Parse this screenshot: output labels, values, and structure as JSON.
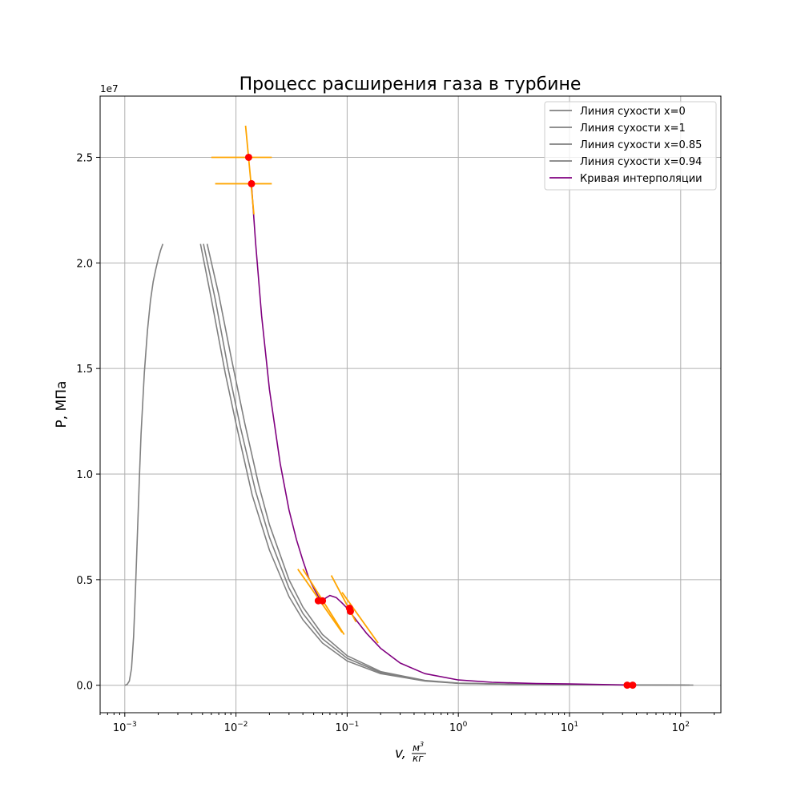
{
  "chart_data": {
    "type": "line",
    "title": "Процесс расширения газа в турбине",
    "xlabel": "v, м³/кг",
    "xlabel_parts": {
      "var": "v,",
      "num": "м",
      "exp": "3",
      "den": "кг"
    },
    "ylabel": "P, МПа",
    "y_offset_label": "1e7",
    "x_scale": "log",
    "xlim": [
      0.0006,
      230
    ],
    "ylim": [
      -1300000,
      27900000
    ],
    "grid": true,
    "legend_position": "upper right",
    "x_ticks": [
      {
        "value": 0.001,
        "base": "10",
        "exp": "−3"
      },
      {
        "value": 0.01,
        "base": "10",
        "exp": "−2"
      },
      {
        "value": 0.1,
        "base": "10",
        "exp": "−1"
      },
      {
        "value": 1,
        "base": "10",
        "exp": "0"
      },
      {
        "value": 10,
        "base": "10",
        "exp": "1"
      },
      {
        "value": 100,
        "base": "10",
        "exp": "2"
      }
    ],
    "y_ticks": [
      {
        "value": 0,
        "label": "0.0"
      },
      {
        "value": 5000000,
        "label": "0.5"
      },
      {
        "value": 10000000,
        "label": "1.0"
      },
      {
        "value": 15000000,
        "label": "1.5"
      },
      {
        "value": 20000000,
        "label": "2.0"
      },
      {
        "value": 25000000,
        "label": "2.5"
      }
    ],
    "series": [
      {
        "name": "Линия сухости x=0",
        "color": "#808080",
        "points": [
          [
            0.001,
            0
          ],
          [
            0.00105,
            40000
          ],
          [
            0.0011,
            200000
          ],
          [
            0.00115,
            800000
          ],
          [
            0.0012,
            2300000
          ],
          [
            0.00125,
            4600000
          ],
          [
            0.0013,
            7200000
          ],
          [
            0.00135,
            9700000
          ],
          [
            0.0014,
            11900000
          ],
          [
            0.0015,
            14800000
          ],
          [
            0.0016,
            16800000
          ],
          [
            0.0017,
            18200000
          ],
          [
            0.0018,
            19100000
          ],
          [
            0.0019,
            19700000
          ],
          [
            0.002,
            20200000
          ],
          [
            0.0021,
            20600000
          ],
          [
            0.0022,
            20900000
          ]
        ]
      },
      {
        "name": "Линия сухости x=1",
        "color": "#808080",
        "points": [
          [
            0.0055,
            20900000
          ],
          [
            0.007,
            18500000
          ],
          [
            0.009,
            15600000
          ],
          [
            0.012,
            12400000
          ],
          [
            0.016,
            9500000
          ],
          [
            0.02,
            7600000
          ],
          [
            0.03,
            5000000
          ],
          [
            0.04,
            3700000
          ],
          [
            0.06,
            2400000
          ],
          [
            0.1,
            1400000
          ],
          [
            0.2,
            650000
          ],
          [
            0.5,
            230000
          ],
          [
            1,
            100000
          ],
          [
            3,
            50000
          ],
          [
            10,
            30000
          ],
          [
            40,
            15000
          ],
          [
            130,
            10000
          ]
        ]
      },
      {
        "name": "Линия сухости x=0.85",
        "color": "#808080",
        "points": [
          [
            0.0048,
            20900000
          ],
          [
            0.006,
            18300000
          ],
          [
            0.008,
            14800000
          ],
          [
            0.01,
            12400000
          ],
          [
            0.014,
            9000000
          ],
          [
            0.02,
            6400000
          ],
          [
            0.03,
            4200000
          ],
          [
            0.04,
            3100000
          ],
          [
            0.06,
            2000000
          ],
          [
            0.1,
            1150000
          ],
          [
            0.2,
            550000
          ],
          [
            0.5,
            200000
          ],
          [
            1,
            90000
          ],
          [
            3,
            45000
          ],
          [
            10,
            28000
          ],
          [
            40,
            14000
          ],
          [
            110,
            9000
          ]
        ]
      },
      {
        "name": "Линия сухости x=0.94",
        "color": "#808080",
        "points": [
          [
            0.0051,
            20900000
          ],
          [
            0.0065,
            18300000
          ],
          [
            0.0085,
            15000000
          ],
          [
            0.011,
            12200000
          ],
          [
            0.015,
            9200000
          ],
          [
            0.02,
            7000000
          ],
          [
            0.03,
            4600000
          ],
          [
            0.04,
            3400000
          ],
          [
            0.06,
            2200000
          ],
          [
            0.1,
            1280000
          ],
          [
            0.2,
            600000
          ],
          [
            0.5,
            215000
          ],
          [
            1,
            95000
          ],
          [
            3,
            47000
          ],
          [
            10,
            29000
          ],
          [
            40,
            14500
          ],
          [
            120,
            9500
          ]
        ]
      },
      {
        "name": "Кривая интерполяции",
        "color": "#800080",
        "points": [
          [
            0.0138,
            23700000
          ],
          [
            0.015,
            21000000
          ],
          [
            0.017,
            17500000
          ],
          [
            0.02,
            14000000
          ],
          [
            0.025,
            10500000
          ],
          [
            0.03,
            8300000
          ],
          [
            0.035,
            6900000
          ],
          [
            0.04,
            5900000
          ],
          [
            0.045,
            5100000
          ],
          [
            0.05,
            4600000
          ],
          [
            0.055,
            4200000
          ],
          [
            0.06,
            4000000
          ],
          [
            0.065,
            4150000
          ],
          [
            0.07,
            4250000
          ],
          [
            0.08,
            4150000
          ],
          [
            0.09,
            3900000
          ],
          [
            0.1,
            3650000
          ],
          [
            0.12,
            3100000
          ],
          [
            0.15,
            2450000
          ],
          [
            0.2,
            1750000
          ],
          [
            0.3,
            1050000
          ],
          [
            0.5,
            550000
          ],
          [
            1,
            250000
          ],
          [
            2,
            140000
          ],
          [
            5,
            80000
          ],
          [
            10,
            60000
          ],
          [
            20,
            35000
          ],
          [
            35,
            10000
          ]
        ]
      }
    ],
    "markers": [
      {
        "x": 0.013,
        "y": 25000000,
        "color": "#ff0000"
      },
      {
        "x": 0.0138,
        "y": 23750000,
        "color": "#ff0000"
      },
      {
        "x": 0.055,
        "y": 4000000,
        "color": "#ff0000"
      },
      {
        "x": 0.06,
        "y": 4000000,
        "color": "#ff0000"
      },
      {
        "x": 0.105,
        "y": 3650000,
        "color": "#ff0000"
      },
      {
        "x": 0.107,
        "y": 3500000,
        "color": "#ff0000"
      },
      {
        "x": 33,
        "y": 5000,
        "color": "#ff0000"
      },
      {
        "x": 37,
        "y": 5000,
        "color": "#ff0000"
      }
    ],
    "tangent_lines": {
      "color": "#ffa500",
      "segments": [
        [
          [
            0.006,
            25000000
          ],
          [
            0.021,
            25000000
          ]
        ],
        [
          [
            0.0065,
            23750000
          ],
          [
            0.021,
            23750000
          ]
        ],
        [
          [
            0.0122,
            26500000
          ],
          [
            0.0145,
            22300000
          ]
        ],
        [
          [
            0.036,
            5500000
          ],
          [
            0.09,
            2500000
          ]
        ],
        [
          [
            0.04,
            5500000
          ],
          [
            0.094,
            2400000
          ]
        ],
        [
          [
            0.072,
            5200000
          ],
          [
            0.12,
            3000000
          ]
        ],
        [
          [
            0.09,
            4400000
          ],
          [
            0.19,
            2000000
          ]
        ]
      ]
    }
  }
}
